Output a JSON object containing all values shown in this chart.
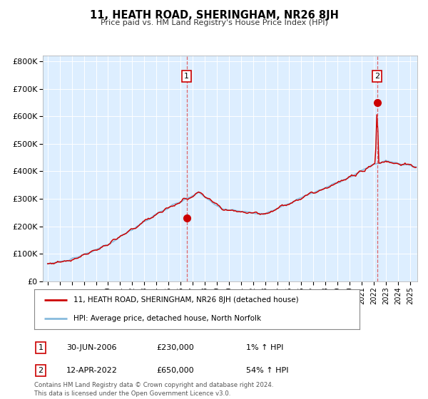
{
  "title": "11, HEATH ROAD, SHERINGHAM, NR26 8JH",
  "subtitle": "Price paid vs. HM Land Registry's House Price Index (HPI)",
  "background_color": "#ffffff",
  "plot_bg_color": "#ddeeff",
  "hpi_color": "#88bbdd",
  "price_color": "#cc0000",
  "sale1_date_num": 2006.5,
  "sale1_price": 230000,
  "sale2_date_num": 2022.28,
  "sale2_price": 650000,
  "ylim": [
    0,
    820000
  ],
  "xlim_start": 1994.6,
  "xlim_end": 2025.6,
  "ytick_labels": [
    "£0",
    "£100K",
    "£200K",
    "£300K",
    "£400K",
    "£500K",
    "£600K",
    "£700K",
    "£800K"
  ],
  "ytick_values": [
    0,
    100000,
    200000,
    300000,
    400000,
    500000,
    600000,
    700000,
    800000
  ],
  "legend_line1": "11, HEATH ROAD, SHERINGHAM, NR26 8JH (detached house)",
  "legend_line2": "HPI: Average price, detached house, North Norfolk",
  "annotation1_label": "1",
  "annotation1_date": "30-JUN-2006",
  "annotation1_price": "£230,000",
  "annotation1_hpi": "1% ↑ HPI",
  "annotation2_label": "2",
  "annotation2_date": "12-APR-2022",
  "annotation2_price": "£650,000",
  "annotation2_hpi": "54% ↑ HPI",
  "footer": "Contains HM Land Registry data © Crown copyright and database right 2024.\nThis data is licensed under the Open Government Licence v3.0."
}
